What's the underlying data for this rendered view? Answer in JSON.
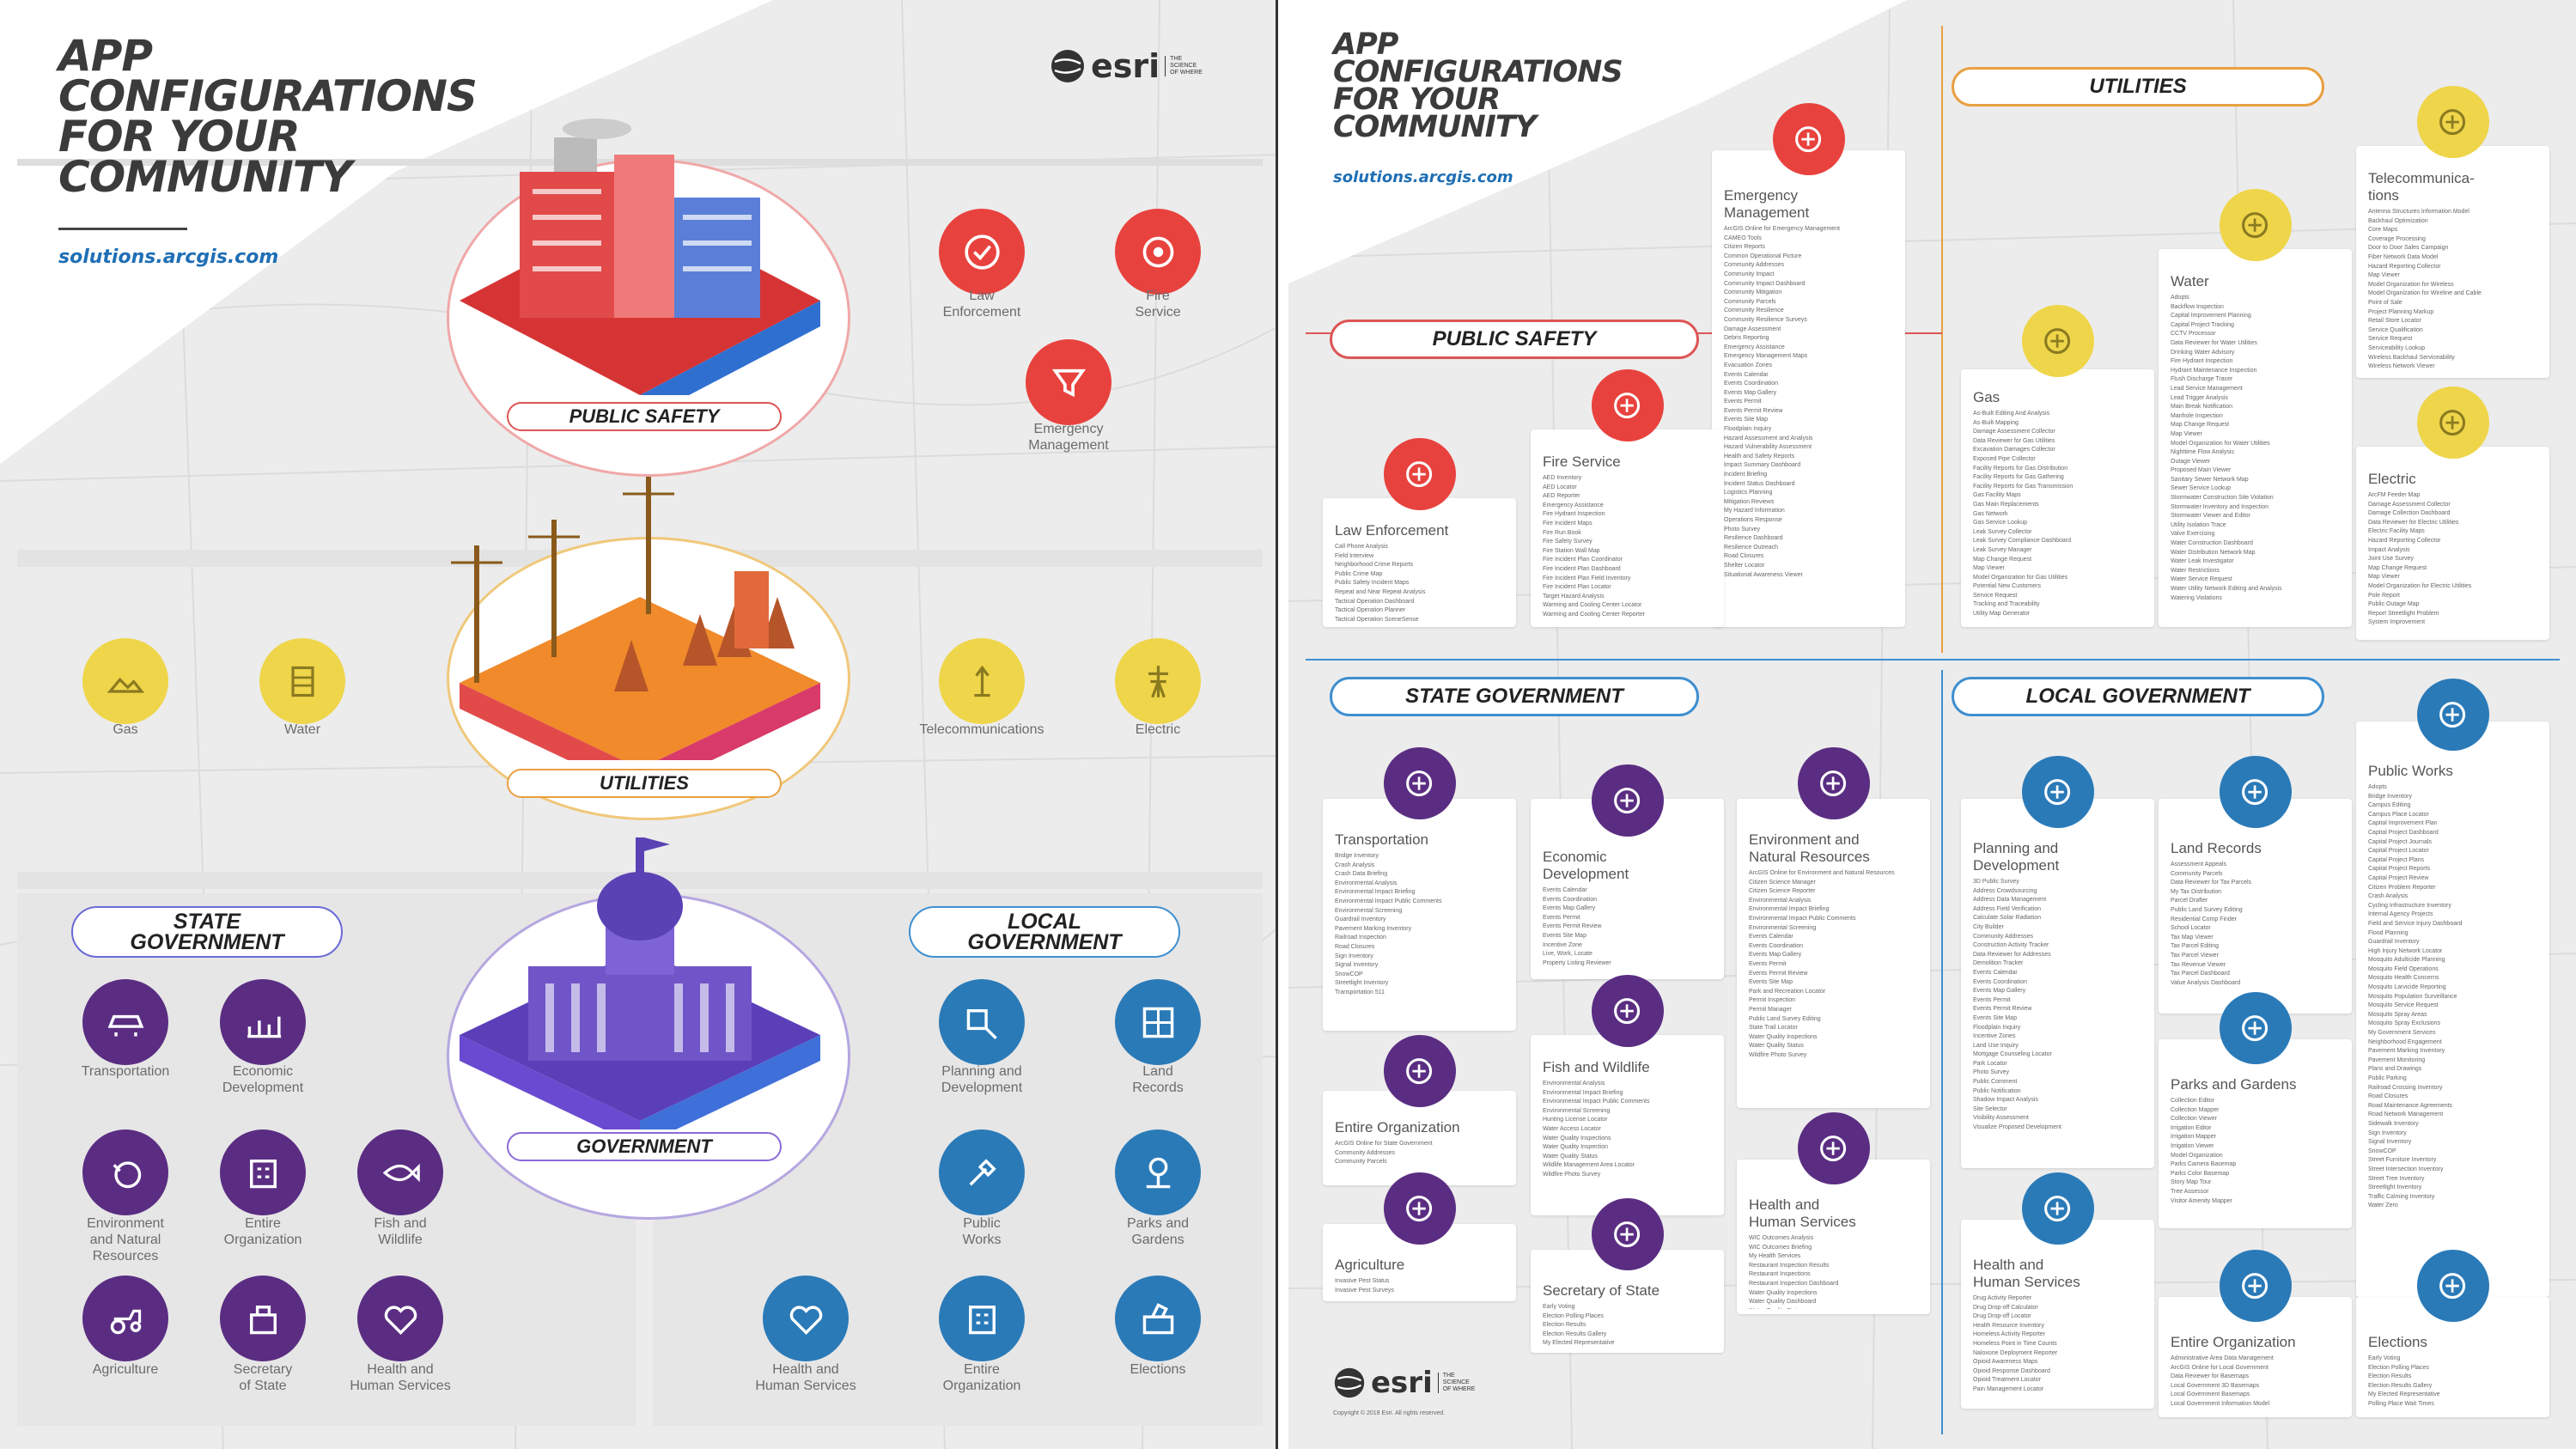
{
  "colors": {
    "red": "#e8423e",
    "yellow": "#efd54a",
    "purple": "#5a2d82",
    "blue": "#2a7ab8"
  },
  "left": {
    "title": [
      "APP",
      "CONFIGURATIONS",
      "FOR YOUR",
      "COMMUNITY"
    ],
    "url": "solutions.arcgis.com",
    "brand": "esri",
    "brand_tag": "THE SCIENCE OF WHERE",
    "sections": {
      "public_safety": "PUBLIC SAFETY",
      "utilities": "UTILITIES",
      "government": "GOVERNMENT",
      "state": "STATE\nGOVERNMENT",
      "local": "LOCAL\nGOVERNMENT"
    },
    "icons": {
      "law": "Law\nEnforcement",
      "fire": "Fire\nService",
      "emergency": "Emergency\nManagement",
      "gas": "Gas",
      "water": "Water",
      "telecom": "Telecommunications",
      "electric": "Electric",
      "transport": "Transportation",
      "econ": "Economic\nDevelopment",
      "env": "Environment\nand Natural\nResources",
      "entire_state": "Entire\nOrganization",
      "fish": "Fish and\nWildlife",
      "agri": "Agriculture",
      "secretary": "Secretary\nof State",
      "hhs_state": "Health and\nHuman Services",
      "planning": "Planning and\nDevelopment",
      "land": "Land\nRecords",
      "public_works": "Public\nWorks",
      "parks": "Parks and\nGardens",
      "hhs_local": "Health and\nHuman Services",
      "entire_local": "Entire\nOrganization",
      "elections": "Elections"
    }
  },
  "right": {
    "title": [
      "APP",
      "CONFIGURATIONS",
      "FOR YOUR",
      "COMMUNITY"
    ],
    "url": "solutions.arcgis.com",
    "brand": "esri",
    "brand_tag": "THE SCIENCE OF WHERE",
    "copyright": "Copyright © 2019 Esri. All rights reserved.",
    "sections": {
      "public_safety": "PUBLIC SAFETY",
      "utilities": "UTILITIES",
      "state": "STATE GOVERNMENT",
      "local": "LOCAL GOVERNMENT"
    },
    "cards": {
      "emergency": {
        "title": "Emergency\nManagement",
        "items": [
          "ArcGIS Online for Emergency Management",
          "CAMEO Tools",
          "Citizen Reports",
          "Common Operational Picture",
          "Community Addresses",
          "Community Impact",
          "Community Impact Dashboard",
          "Community Mitigation",
          "Community Parcels",
          "Community Resilience",
          "Community Resilience Surveys",
          "Damage Assessment",
          "Debris Reporting",
          "Emergency Assistance",
          "Emergency Management Maps",
          "Evacuation Zones",
          "Events Calendar",
          "Events Coordination",
          "Events Map Gallery",
          "Events Permit",
          "Events Permit Review",
          "Events Site Map",
          "Floodplain Inquiry",
          "Hazard Assessment and Analysis",
          "Hazard Vulnerability Assessment",
          "Health and Safety Reports",
          "Impact Summary Dashboard",
          "Incident Briefing",
          "Incident Status Dashboard",
          "Logistics Planning",
          "Mitigation Reviews",
          "My Hazard Information",
          "Operations Response",
          "Photo Survey",
          "Resilience Dashboard",
          "Resilience Outreach",
          "Road Closures",
          "Shelter Locator",
          "Situational Awareness Viewer"
        ]
      },
      "fire": {
        "title": "Fire Service",
        "items": [
          "AED Inventory",
          "AED Locator",
          "AED Reporter",
          "Emergency Assistance",
          "Fire Hydrant Inspection",
          "Fire Incident Maps",
          "Fire Run Book",
          "Fire Safety Survey",
          "Fire Station Wall Map",
          "Fire Incident Plan Coordinator",
          "Fire Incident Plan Dashboard",
          "Fire Incident Plan Field Inventory",
          "Fire Incident Plan Locator",
          "Target Hazard Analysis",
          "Warming and Cooling Center Locator",
          "Warming and Cooling Center Reporter"
        ]
      },
      "law": {
        "title": "Law Enforcement",
        "items": [
          "Call Phone Analysis",
          "Field Interview",
          "Neighborhood Crime Reports",
          "Public Crime Map",
          "Public Safety Incident Maps",
          "Repeat and Near Repeat Analysis",
          "Tactical Operation Dashboard",
          "Tactical Operation Planner",
          "Tactical Operation SceneSense"
        ]
      },
      "water": {
        "title": "Water",
        "items": [
          "Adopts",
          "Backflow Inspection",
          "Capital Improvement Planning",
          "Capital Project Tracking",
          "CCTV Processor",
          "Data Reviewer for Water Utilities",
          "Drinking Water Advisory",
          "Fire Hydrant Inspection",
          "Hydrant Maintenance Inspection",
          "Flush Discharge Tracer",
          "Lead Service Management",
          "Lead Trigger Analysis",
          "Main Break Notification",
          "Manhole Inspection",
          "Map Change Request",
          "Map Viewer",
          "Model Organization for Water Utilities",
          "Nighttime Flow Analysis",
          "Outage Viewer",
          "Proposed Main Viewer",
          "Sanitary Sewer Network Map",
          "Sewer Service Lookup",
          "Stormwater Construction Site Violation",
          "Stormwater Inventory and Inspection",
          "Stormwater Viewer and Editor",
          "Utility Isolation Trace",
          "Valve Exercising",
          "Water Construction Dashboard",
          "Water Distribution Network Map",
          "Water Leak Investigator",
          "Water Restrictions",
          "Water Service Request",
          "Water Utility Network Editing and Analysis",
          "Watering Violations"
        ]
      },
      "gas": {
        "title": "Gas",
        "items": [
          "As-Built Editing And Analysis",
          "As-Built Mapping",
          "Damage Assessment Collector",
          "Data Reviewer for Gas Utilities",
          "Excavation Damages Collector",
          "Exposed Pipe Collector",
          "Facility Reports for Gas Distribution",
          "Facility Reports for Gas Gathering",
          "Facility Reports for Gas Transmission",
          "Gas Facility Maps",
          "Gas Main Replacements",
          "Gas Network",
          "Gas Service Lookup",
          "Leak Survey Collector",
          "Leak Survey Compliance Dashboard",
          "Leak Survey Manager",
          "Map Change Request",
          "Map Viewer",
          "Model Organization for Gas Utilities",
          "Potential New Customers",
          "Service Request",
          "Tracking and Traceability",
          "Utility Map Generator"
        ]
      },
      "telecom": {
        "title": "Telecommunica-\ntions",
        "items": [
          "Antenna Structures Information Model",
          "Backhaul Optimization",
          "Core Maps",
          "Coverage Processing",
          "Door to Door Sales Campaign",
          "Fiber Network Data Model",
          "Hazard Reporting Collector",
          "Map Viewer",
          "Model Organization for Wireless",
          "Model Organization for Wireline and Cable",
          "Point of Sale",
          "Project Planning Markup",
          "Retail Store Locator",
          "Service Qualification",
          "Service Request",
          "Serviceability Lookup",
          "Wireless Backhaul Serviceability",
          "Wireless Network Viewer",
          "Wireline Bulk Serviceability"
        ]
      },
      "electric": {
        "title": "Electric",
        "items": [
          "ArcFM Feeder Map",
          "Damage Assessment Collector",
          "Damage Collection Dashboard",
          "Data Reviewer for Electric Utilities",
          "Electric Facility Maps",
          "Hazard Reporting Collector",
          "Impact Analysis",
          "Joint Use Survey",
          "Map Change Request",
          "Map Viewer",
          "Model Organization for Electric Utilities",
          "Pole Report",
          "Public Outage Map",
          "Report Streetlight Problem",
          "System Improvement"
        ]
      },
      "transport": {
        "title": "Transportation",
        "items": [
          "Bridge Inventory",
          "Crash Analysis",
          "Crash Data Briefing",
          "Environmental Analysis",
          "Environmental Impact Briefing",
          "Environmental Impact Public Comments",
          "Environmental Screening",
          "Guardrail Inventory",
          "Pavement Marking Inventory",
          "Railroad Inspection",
          "Road Closures",
          "Sign Inventory",
          "Signal Inventory",
          "SnowCOP",
          "Streetlight Inventory",
          "Transportation 511"
        ]
      },
      "econ": {
        "title": "Economic\nDevelopment",
        "items": [
          "Events Calendar",
          "Events Coordination",
          "Events Map Gallery",
          "Events Permit",
          "Events Permit Review",
          "Events Site Map",
          "Incentive Zone",
          "Live, Work, Locate",
          "Property Listing Reviewer"
        ]
      },
      "env": {
        "title": "Environment and\nNatural Resources",
        "items": [
          "ArcGIS Online for Environment and Natural Resources",
          "Citizen Science Manager",
          "Citizen Science Reporter",
          "Environmental Analysis",
          "Environmental Impact Briefing",
          "Environmental Impact Public Comments",
          "Environmental Screening",
          "Events Calendar",
          "Events Coordination",
          "Events Map Gallery",
          "Events Permit",
          "Events Permit Review",
          "Events Site Map",
          "Park and Recreation Locator",
          "Permit Inspection",
          "Permit Manager",
          "Public Land Survey Editing",
          "State Trail Locator",
          "Water Quality Inspections",
          "Water Quality Status",
          "Wildfire Photo Survey"
        ]
      },
      "entire_state": {
        "title": "Entire Organization",
        "items": [
          "ArcGIS Online for State Government",
          "Community Addresses",
          "Community Parcels"
        ]
      },
      "fish": {
        "title": "Fish and Wildlife",
        "items": [
          "Environmental Analysis",
          "Environmental Impact Briefing",
          "Environmental Impact Public Comments",
          "Environmental Screening",
          "Hunting License Locator",
          "Water Access Locator",
          "Water Quality Inspections",
          "Water Quality Inspection",
          "Water Quality Status",
          "Wildlife Management Area Locator",
          "Wildfire Photo Survey"
        ]
      },
      "agri": {
        "title": "Agriculture",
        "items": [
          "Invasive Pest Status",
          "Invasive Pest Surveys",
          "Invasive Pest Viewer"
        ]
      },
      "secretary": {
        "title": "Secretary of State",
        "items": [
          "Early Voting",
          "Election Polling Places",
          "Election Results",
          "Election Results Gallery",
          "My Elected Representative"
        ]
      },
      "hhs_state": {
        "title": "Health and\nHuman Services",
        "items": [
          "WIC Outcomes Analysis",
          "WIC Outcomes Briefing",
          "My Health Services",
          "Restaurant Inspection Results",
          "Restaurant Inspections",
          "Restaurant Inspection Dashboard",
          "Water Quality Inspections",
          "Water Quality Dashboard",
          "Water Quality Status"
        ]
      },
      "planning": {
        "title": "Planning and\nDevelopment",
        "items": [
          "3D Public Survey",
          "Address Crowdsourcing",
          "Address Data Management",
          "Address Field Verification",
          "Calculate Solar Radiation",
          "City Builder",
          "Community Addresses",
          "Construction Activity Tracker",
          "Data Reviewer for Addresses",
          "Demolition Tracker",
          "Events Calendar",
          "Events Coordination",
          "Events Map Gallery",
          "Events Permit",
          "Events Permit Review",
          "Events Site Map",
          "Floodplain Inquiry",
          "Incentive Zones",
          "Land Use Inquiry",
          "Mortgage Counseling Locator",
          "Park Locator",
          "Photo Survey",
          "Public Comment",
          "Public Notification",
          "Shadow Impact Analysis",
          "Site Selector",
          "Visibility Assessment",
          "Visualize Proposed Development"
        ]
      },
      "land": {
        "title": "Land Records",
        "items": [
          "Assessment Appeals",
          "Community Parcels",
          "Data Reviewer for Tax Parcels",
          "My Tax Distribution",
          "Parcel Drafter",
          "Public Land Survey Editing",
          "Residential Comp Finder",
          "School Locator",
          "Tax Map Viewer",
          "Tax Parcel Editing",
          "Tax Parcel Viewer",
          "Tax Revenue Viewer",
          "Tax Parcel Dashboard",
          "Value Analysis Dashboard"
        ]
      },
      "public_works": {
        "title": "Public Works",
        "items": [
          "Adopts",
          "Bridge Inventory",
          "Campus Editing",
          "Campus Place Locator",
          "Capital Improvement Plan",
          "Capital Project Dashboard",
          "Capital Project Journals",
          "Capital Project Locator",
          "Capital Project Plans",
          "Capital Project Reports",
          "Capital Project Review",
          "Citizen Problem Reporter",
          "Crash Analysis",
          "Cycling Infrastructure Inventory",
          "Internal Agency Projects",
          "Field and Service Injury Dashboard",
          "Flood Planning",
          "Guardrail Inventory",
          "High Injury Network Locator",
          "Mosquito Adulticide Planning",
          "Mosquito Field Operations",
          "Mosquito Health Concerns",
          "Mosquito Larvicide Reporting",
          "Mosquito Population Surveillance",
          "Mosquito Service Request",
          "Mosquito Spray Areas",
          "Mosquito Spray Exclusions",
          "My Government Services",
          "Neighborhood Engagement",
          "Pavement Marking Inventory",
          "Pavement Monitoring",
          "Plans and Drawings",
          "Public Parking",
          "Railroad Crossing Inventory",
          "Road Closures",
          "Road Maintenance Agreements",
          "Road Network Management",
          "Sidewalk Inventory",
          "Sign Inventory",
          "Signal Inventory",
          "SnowCOP",
          "Street Furniture Inventory",
          "Street Intersection Inventory",
          "Street Tree Inventory",
          "Streetlight Inventory",
          "Traffic Calming Inventory",
          "Water Zero"
        ]
      },
      "parks": {
        "title": "Parks and Gardens",
        "items": [
          "Collection Editor",
          "Collection Mapper",
          "Collection Viewer",
          "Irrigation Editor",
          "Irrigation Mapper",
          "Irrigation Viewer",
          "Model Organization",
          "Parks Camera Basemap",
          "Parks Color Basemap",
          "Story Map Tour",
          "Tree Assessor",
          "Visitor Amenity Mapper"
        ]
      },
      "hhs_local": {
        "title": "Health and\nHuman Services",
        "items": [
          "Drug Activity Reporter",
          "Drug Drop-off Calculator",
          "Drug Drop-off Locator",
          "Health Resource Inventory",
          "Homeless Activity Reporter",
          "Homeless Point in Time Counts",
          "Naloxone Deployment Reporter",
          "Opioid Awareness Maps",
          "Opioid Response Dashboard",
          "Opioid Treatment Locator",
          "Pain Management Locator"
        ]
      },
      "entire_local": {
        "title": "Entire Organization",
        "items": [
          "Administrative Area Data Management",
          "ArcGIS Online for Local Government",
          "Data Reviewer for Basemaps",
          "Local Government 3D Basemaps",
          "Local Government Basemaps",
          "Local Government Information Model"
        ]
      },
      "elections": {
        "title": "Elections",
        "items": [
          "Early Voting",
          "Election Polling Places",
          "Election Results",
          "Election Results Gallery",
          "My Elected Representative",
          "Polling Place Wait Times"
        ]
      }
    }
  }
}
